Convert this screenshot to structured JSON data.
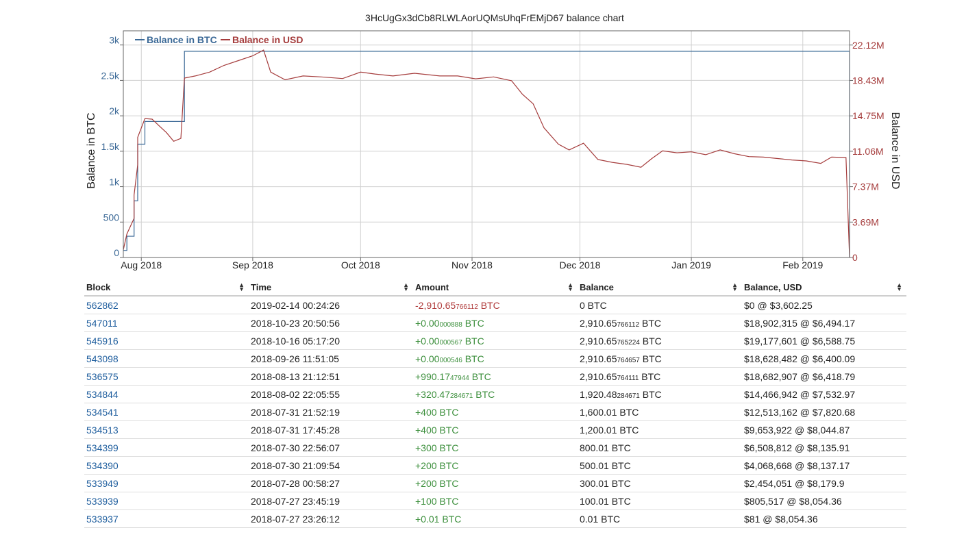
{
  "chart_data": {
    "type": "line",
    "title": "3HcUgGx3dCb8RLWLAorUQMsUhqFrEMjD67 balance chart",
    "ylabel_left": "Balance in BTC",
    "ylabel_right": "Balance in USD",
    "x_ticks": [
      "Aug 2018",
      "Sep 2018",
      "Oct 2018",
      "Nov 2018",
      "Dec 2018",
      "Jan 2019",
      "Feb 2019"
    ],
    "y_ticks_left": [
      "0",
      "500",
      "1k",
      "1.5k",
      "2k",
      "2.5k",
      "3k"
    ],
    "y_ticks_right": [
      "0",
      "3.69M",
      "7.37M",
      "11.06M",
      "14.75M",
      "18.43M",
      "22.12M"
    ],
    "ylim_left": [
      0,
      3200
    ],
    "ylim_right": [
      0,
      23600000
    ],
    "xlim": [
      "2018-07-27",
      "2019-02-14"
    ],
    "grid": true,
    "legend_position": "top-left",
    "colors": {
      "btc": "#3a6896",
      "usd": "#a53c3c"
    },
    "series": [
      {
        "name": "Balance in BTC",
        "axis": "left",
        "step": true,
        "points": [
          [
            "2018-07-27",
            100.01
          ],
          [
            "2018-07-28",
            300.01
          ],
          [
            "2018-07-30",
            500.01
          ],
          [
            "2018-07-30",
            800.01
          ],
          [
            "2018-07-31",
            1200.01
          ],
          [
            "2018-07-31",
            1600.01
          ],
          [
            "2018-08-02",
            1920.48
          ],
          [
            "2018-08-13",
            2910.66
          ],
          [
            "2019-02-14",
            0
          ]
        ]
      },
      {
        "name": "Balance in USD",
        "axis": "right",
        "step": false,
        "points": [
          [
            "2018-07-27",
            805517
          ],
          [
            "2018-07-28",
            2454051
          ],
          [
            "2018-07-30",
            4068668
          ],
          [
            "2018-07-30",
            6508812
          ],
          [
            "2018-07-31",
            9653922
          ],
          [
            "2018-07-31",
            12513162
          ],
          [
            "2018-08-02",
            14466942
          ],
          [
            "2018-08-04",
            14400000
          ],
          [
            "2018-08-06",
            13700000
          ],
          [
            "2018-08-08",
            13000000
          ],
          [
            "2018-08-10",
            12100000
          ],
          [
            "2018-08-12",
            12400000
          ],
          [
            "2018-08-13",
            18682907
          ],
          [
            "2018-08-16",
            18900000
          ],
          [
            "2018-08-20",
            19300000
          ],
          [
            "2018-08-24",
            20000000
          ],
          [
            "2018-08-28",
            20500000
          ],
          [
            "2018-09-01",
            21000000
          ],
          [
            "2018-09-04",
            21600000
          ],
          [
            "2018-09-06",
            19300000
          ],
          [
            "2018-09-10",
            18500000
          ],
          [
            "2018-09-15",
            18900000
          ],
          [
            "2018-09-20",
            18800000
          ],
          [
            "2018-09-26",
            18628482
          ],
          [
            "2018-10-01",
            19300000
          ],
          [
            "2018-10-05",
            19100000
          ],
          [
            "2018-10-10",
            18900000
          ],
          [
            "2018-10-16",
            19177601
          ],
          [
            "2018-10-23",
            18902315
          ],
          [
            "2018-10-28",
            18900000
          ],
          [
            "2018-11-02",
            18600000
          ],
          [
            "2018-11-07",
            18800000
          ],
          [
            "2018-11-12",
            18400000
          ],
          [
            "2018-11-15",
            17000000
          ],
          [
            "2018-11-18",
            16000000
          ],
          [
            "2018-11-21",
            13500000
          ],
          [
            "2018-11-25",
            11800000
          ],
          [
            "2018-11-28",
            11200000
          ],
          [
            "2018-12-02",
            11900000
          ],
          [
            "2018-12-06",
            10200000
          ],
          [
            "2018-12-10",
            9900000
          ],
          [
            "2018-12-14",
            9700000
          ],
          [
            "2018-12-18",
            9400000
          ],
          [
            "2018-12-21",
            10300000
          ],
          [
            "2018-12-24",
            11100000
          ],
          [
            "2018-12-28",
            10900000
          ],
          [
            "2019-01-01",
            11000000
          ],
          [
            "2019-01-05",
            10700000
          ],
          [
            "2019-01-09",
            11200000
          ],
          [
            "2019-01-13",
            10800000
          ],
          [
            "2019-01-17",
            10500000
          ],
          [
            "2019-01-21",
            10450000
          ],
          [
            "2019-01-25",
            10300000
          ],
          [
            "2019-01-29",
            10150000
          ],
          [
            "2019-02-02",
            10050000
          ],
          [
            "2019-02-06",
            9800000
          ],
          [
            "2019-02-09",
            10450000
          ],
          [
            "2019-02-13",
            10400000
          ],
          [
            "2019-02-14",
            0
          ]
        ]
      }
    ]
  },
  "table": {
    "headers": [
      "Block",
      "Time",
      "Amount",
      "Balance",
      "Balance, USD"
    ],
    "rows": [
      {
        "block": "562862",
        "time": "2019-02-14 00:24:26",
        "amount_main": "-2,910.65",
        "amount_small": "766112",
        "amount_unit": " BTC",
        "sign": "neg",
        "balance_main": "0 BTC",
        "balance_small": "",
        "balance_unit": "",
        "usd": "$0 @ $3,602.25"
      },
      {
        "block": "547011",
        "time": "2018-10-23 20:50:56",
        "amount_main": "+0.00",
        "amount_small": "000888",
        "amount_unit": " BTC",
        "sign": "pos",
        "balance_main": "2,910.65",
        "balance_small": "766112",
        "balance_unit": " BTC",
        "usd": "$18,902,315 @ $6,494.17"
      },
      {
        "block": "545916",
        "time": "2018-10-16 05:17:20",
        "amount_main": "+0.00",
        "amount_small": "000567",
        "amount_unit": " BTC",
        "sign": "pos",
        "balance_main": "2,910.65",
        "balance_small": "765224",
        "balance_unit": " BTC",
        "usd": "$19,177,601 @ $6,588.75"
      },
      {
        "block": "543098",
        "time": "2018-09-26 11:51:05",
        "amount_main": "+0.00",
        "amount_small": "000546",
        "amount_unit": " BTC",
        "sign": "pos",
        "balance_main": "2,910.65",
        "balance_small": "764657",
        "balance_unit": " BTC",
        "usd": "$18,628,482 @ $6,400.09"
      },
      {
        "block": "536575",
        "time": "2018-08-13 21:12:51",
        "amount_main": "+990.17",
        "amount_small": "47944",
        "amount_unit": " BTC",
        "sign": "pos",
        "balance_main": "2,910.65",
        "balance_small": "764111",
        "balance_unit": " BTC",
        "usd": "$18,682,907 @ $6,418.79"
      },
      {
        "block": "534844",
        "time": "2018-08-02 22:05:55",
        "amount_main": "+320.47",
        "amount_small": "284671",
        "amount_unit": " BTC",
        "sign": "pos",
        "balance_main": "1,920.48",
        "balance_small": "284671",
        "balance_unit": " BTC",
        "usd": "$14,466,942 @ $7,532.97"
      },
      {
        "block": "534541",
        "time": "2018-07-31 21:52:19",
        "amount_main": "+400 BTC",
        "amount_small": "",
        "amount_unit": "",
        "sign": "pos",
        "balance_main": "1,600.01 BTC",
        "balance_small": "",
        "balance_unit": "",
        "usd": "$12,513,162 @ $7,820.68"
      },
      {
        "block": "534513",
        "time": "2018-07-31 17:45:28",
        "amount_main": "+400 BTC",
        "amount_small": "",
        "amount_unit": "",
        "sign": "pos",
        "balance_main": "1,200.01 BTC",
        "balance_small": "",
        "balance_unit": "",
        "usd": "$9,653,922 @ $8,044.87"
      },
      {
        "block": "534399",
        "time": "2018-07-30 22:56:07",
        "amount_main": "+300 BTC",
        "amount_small": "",
        "amount_unit": "",
        "sign": "pos",
        "balance_main": "800.01 BTC",
        "balance_small": "",
        "balance_unit": "",
        "usd": "$6,508,812 @ $8,135.91"
      },
      {
        "block": "534390",
        "time": "2018-07-30 21:09:54",
        "amount_main": "+200 BTC",
        "amount_small": "",
        "amount_unit": "",
        "sign": "pos",
        "balance_main": "500.01 BTC",
        "balance_small": "",
        "balance_unit": "",
        "usd": "$4,068,668 @ $8,137.17"
      },
      {
        "block": "533949",
        "time": "2018-07-28 00:58:27",
        "amount_main": "+200 BTC",
        "amount_small": "",
        "amount_unit": "",
        "sign": "pos",
        "balance_main": "300.01 BTC",
        "balance_small": "",
        "balance_unit": "",
        "usd": "$2,454,051 @ $8,179.9"
      },
      {
        "block": "533939",
        "time": "2018-07-27 23:45:19",
        "amount_main": "+100 BTC",
        "amount_small": "",
        "amount_unit": "",
        "sign": "pos",
        "balance_main": "100.01 BTC",
        "balance_small": "",
        "balance_unit": "",
        "usd": "$805,517 @ $8,054.36"
      },
      {
        "block": "533937",
        "time": "2018-07-27 23:26:12",
        "amount_main": "+0.01 BTC",
        "amount_small": "",
        "amount_unit": "",
        "sign": "pos",
        "balance_main": "0.01 BTC",
        "balance_small": "",
        "balance_unit": "",
        "usd": "$81 @ $8,054.36"
      }
    ]
  }
}
